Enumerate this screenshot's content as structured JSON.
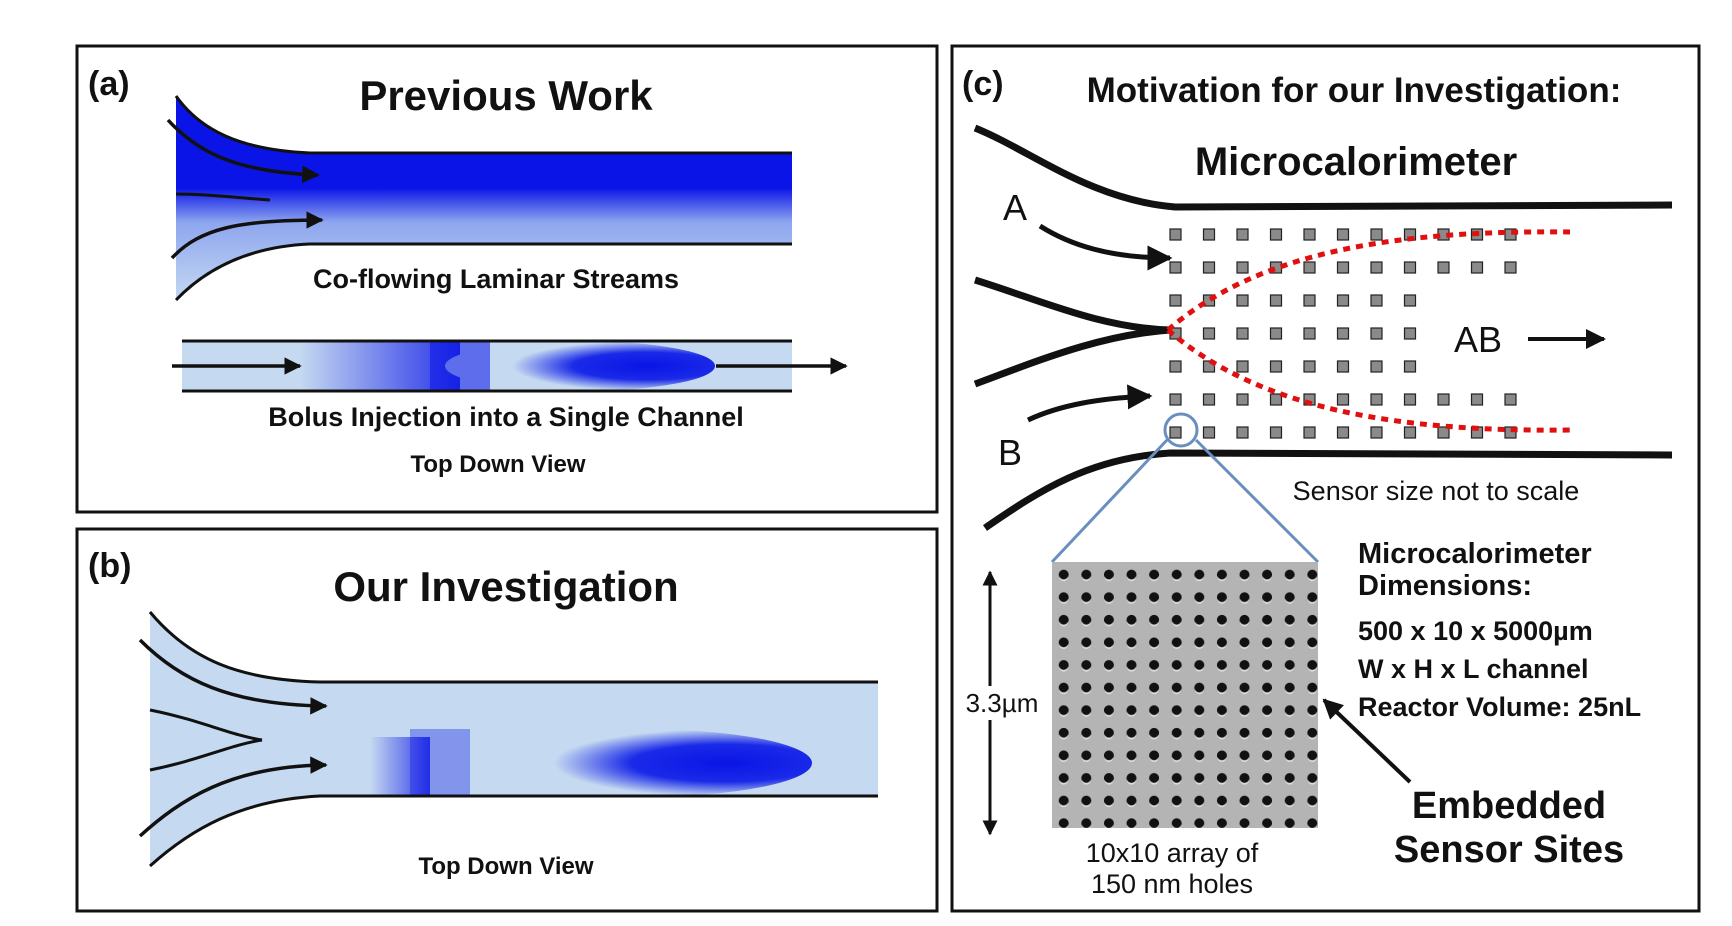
{
  "panel_a": {
    "label": "(a)",
    "title": "Previous Work",
    "caption_coflow": "Co-flowing Laminar Streams",
    "caption_bolus": "Bolus Injection into a Single Channel",
    "view_label": "Top Down View"
  },
  "panel_b": {
    "label": "(b)",
    "title": "Our Investigation",
    "view_label": "Top Down View"
  },
  "panel_c": {
    "label": "(c)",
    "title": "Motivation for our Investigation:",
    "subtitle": "Microcalorimeter",
    "inlet_a": "A",
    "inlet_b": "B",
    "outlet": "AB",
    "scale_note": "Sensor size not to scale",
    "scale_bar": "3.3µm",
    "array_caption_line1": "10x10 array of",
    "array_caption_line2": "150 nm holes",
    "dims_heading_line1": "Microcalorimeter",
    "dims_heading_line2": "Dimensions:",
    "dims_size": "500 x 10 x 5000µm",
    "dims_axes": "W x H x L channel",
    "dims_volume": "Reactor Volume: 25nL",
    "sensor_label_line1": "Embedded",
    "sensor_label_line2": "Sensor Sites"
  },
  "colors": {
    "dark_blue": "#0a14e6",
    "light_blue": "#c5d9f1",
    "reaction_front": "#e01010",
    "zoom_lines": "#6a8fbf",
    "sensor_site": "#8a8a8a"
  }
}
